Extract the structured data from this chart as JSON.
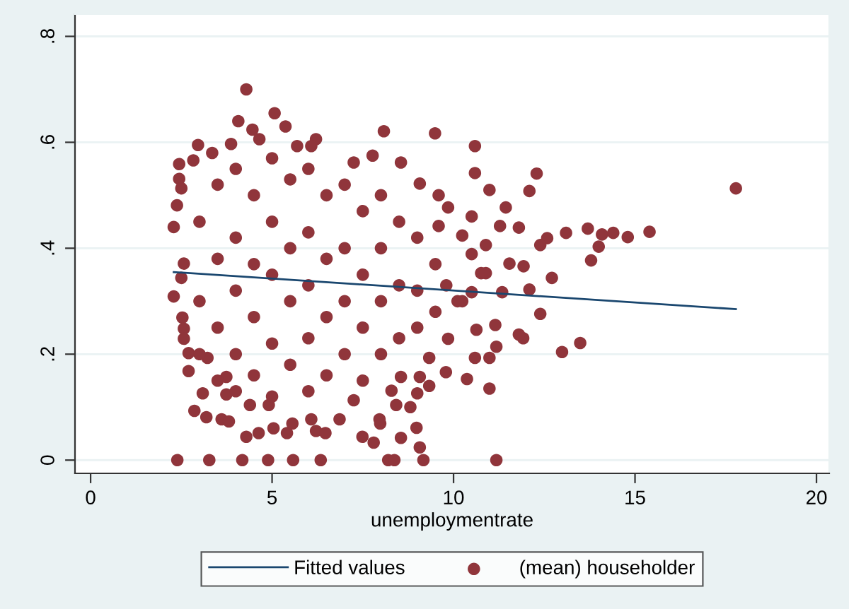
{
  "chart_data": {
    "type": "scatter",
    "xlabel": "unemploymentrate",
    "xlim": [
      -0.43,
      20.35
    ],
    "ylim": [
      -0.025,
      0.842
    ],
    "xticks": [
      0,
      5,
      10,
      15,
      20
    ],
    "yticks": [
      0,
      {
        "value": 0.2,
        "label": ".2"
      },
      {
        "value": 0.4,
        "label": ".4"
      },
      {
        "value": 0.6,
        "label": ".6"
      },
      {
        "value": 0.8,
        "label": ".8"
      }
    ],
    "grid": "y",
    "legend": "bottom",
    "series": [
      {
        "name": "Fitted values",
        "type": "line",
        "color": "#1a476f",
        "line_style": "solid",
        "x": [
          2.29,
          17.78
        ],
        "values": [
          0.355,
          0.285
        ]
      },
      {
        "name": "(mean) householder",
        "marker": "circle",
        "color": "#90353b",
        "x": [
          9.49,
          10.59,
          10.59,
          12.29,
          10.99,
          12.09,
          17.78,
          11.44,
          11.8,
          13.1,
          13.7,
          14.09,
          14.4,
          14.8,
          15.4,
          12.58,
          12.39,
          14.0,
          13.79,
          12.71,
          11.93,
          12.09,
          12.39,
          11.92,
          11.8,
          12.99,
          13.49,
          11.18,
          10.99,
          10.99,
          10.37,
          9.79,
          11.18,
          11.28,
          10.5,
          9.59,
          11.34,
          11.54,
          10.76,
          11.15,
          10.24,
          10.59,
          4.29,
          4.07,
          5.07,
          5.37,
          8.08,
          2.96,
          2.44,
          2.29,
          2.38,
          2.29,
          2.53,
          2.57,
          2.7,
          2.7,
          2.86,
          3.19,
          2.39,
          3.27,
          4.18,
          4.89,
          5.58,
          6.34,
          8.2,
          8.37,
          9.17,
          4.29,
          4.63,
          5.04,
          5.41,
          6.21,
          6.47,
          7.49,
          7.8,
          7.98,
          8.55,
          9.07,
          8.98,
          3.61,
          3.81,
          4.39,
          4.91,
          5.56,
          6.08,
          6.86,
          7.96,
          8.42,
          8.81,
          3.74,
          3.09,
          7.25,
          8.29,
          9.0,
          9.33,
          9.07,
          8.55,
          9.07,
          7.77,
          7.25,
          6.21,
          5.69,
          6.08,
          4.46,
          4.65,
          3.87,
          3.35,
          2.83,
          2.44,
          2.5,
          9.85,
          2.57,
          2.5,
          2.57,
          3.22,
          3.74,
          8.55,
          9.33,
          9.85,
          10.63,
          10.11,
          10.5,
          10.89,
          10.5,
          10.89,
          10.24,
          9.59,
          3.0,
          3.0,
          3.0,
          3.5,
          3.5,
          3.5,
          3.5,
          4.0,
          4.0,
          4.0,
          4.0,
          4.0,
          4.5,
          4.5,
          4.5,
          4.5,
          5.0,
          5.0,
          5.0,
          5.0,
          5.0,
          5.5,
          5.5,
          5.5,
          5.5,
          6.0,
          6.0,
          6.0,
          6.0,
          6.0,
          6.5,
          6.5,
          6.5,
          6.5,
          7.0,
          7.0,
          7.0,
          7.0,
          7.5,
          7.5,
          7.5,
          7.5,
          8.0,
          8.0,
          8.0,
          8.0,
          8.5,
          8.5,
          8.5,
          9.0,
          9.0,
          9.0,
          9.5,
          9.5,
          9.8
        ],
        "values": [
          0.617,
          0.593,
          0.542,
          0.541,
          0.51,
          0.508,
          0.513,
          0.477,
          0.439,
          0.429,
          0.437,
          0.426,
          0.429,
          0.421,
          0.431,
          0.419,
          0.406,
          0.403,
          0.377,
          0.344,
          0.366,
          0.322,
          0.276,
          0.23,
          0.237,
          0.204,
          0.221,
          0.214,
          0.193,
          0.135,
          0.153,
          0.166,
          0,
          0.442,
          0.46,
          0.5,
          0.317,
          0.371,
          0.353,
          0.255,
          0.3,
          0.193,
          0.7,
          0.64,
          0.655,
          0.63,
          0.621,
          0.595,
          0.559,
          0.44,
          0.481,
          0.309,
          0.269,
          0.248,
          0.202,
          0.168,
          0.093,
          0.081,
          0,
          0,
          0,
          0,
          0,
          0,
          0,
          0,
          0,
          0.044,
          0.051,
          0.06,
          0.051,
          0.055,
          0.051,
          0.044,
          0.033,
          0.069,
          0.042,
          0.024,
          0.061,
          0.077,
          0.073,
          0.104,
          0.104,
          0.069,
          0.077,
          0.077,
          0.077,
          0.104,
          0.1,
          0.124,
          0.126,
          0.113,
          0.131,
          0.126,
          0.14,
          0.157,
          0.562,
          0.522,
          0.575,
          0.562,
          0.606,
          0.593,
          0.593,
          0.624,
          0.606,
          0.597,
          0.58,
          0.566,
          0.531,
          0.513,
          0.477,
          0.371,
          0.344,
          0.229,
          0.193,
          0.157,
          0.157,
          0.193,
          0.229,
          0.246,
          0.3,
          0.317,
          0.353,
          0.389,
          0.406,
          0.424,
          0.442,
          0.45,
          0.3,
          0.2,
          0.52,
          0.38,
          0.25,
          0.15,
          0.55,
          0.42,
          0.32,
          0.2,
          0.13,
          0.5,
          0.37,
          0.27,
          0.16,
          0.57,
          0.45,
          0.35,
          0.22,
          0.12,
          0.53,
          0.4,
          0.3,
          0.18,
          0.55,
          0.43,
          0.33,
          0.23,
          0.13,
          0.5,
          0.38,
          0.27,
          0.16,
          0.52,
          0.4,
          0.3,
          0.2,
          0.47,
          0.35,
          0.25,
          0.15,
          0.5,
          0.4,
          0.3,
          0.2,
          0.45,
          0.33,
          0.23,
          0.42,
          0.32,
          0.25,
          0.37,
          0.28,
          0.33
        ]
      }
    ]
  }
}
